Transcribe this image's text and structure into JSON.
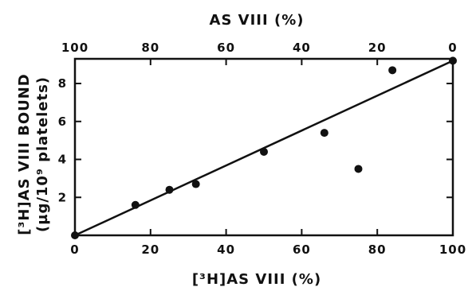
{
  "chart_data": {
    "type": "scatter",
    "top_axis_title": "AS VIII (%)",
    "xlabel": "[³H]AS VIII (%)",
    "ylabel_line1": "[³H]AS VIII BOUND",
    "ylabel_line2": "(µg/10⁹ platelets)",
    "xlim": [
      0,
      100
    ],
    "ylim": [
      0,
      9.3
    ],
    "x_ticks": [
      0,
      20,
      40,
      60,
      80,
      100
    ],
    "top_ticks": [
      100,
      80,
      60,
      40,
      20,
      0
    ],
    "y_ticks": [
      2,
      4,
      6,
      8
    ],
    "grid": false,
    "legend": false,
    "points": [
      {
        "x": 0,
        "y": 0
      },
      {
        "x": 16,
        "y": 1.6
      },
      {
        "x": 25,
        "y": 2.4
      },
      {
        "x": 32,
        "y": 2.7
      },
      {
        "x": 50,
        "y": 4.4
      },
      {
        "x": 66,
        "y": 5.4
      },
      {
        "x": 75,
        "y": 3.5
      },
      {
        "x": 84,
        "y": 8.7
      },
      {
        "x": 100,
        "y": 9.2
      }
    ],
    "fit_line": {
      "start": {
        "x": 0,
        "y": 0
      },
      "end": {
        "x": 100,
        "y": 9.2
      }
    },
    "colors": {
      "ink": "#111111",
      "background": "#ffffff"
    }
  }
}
